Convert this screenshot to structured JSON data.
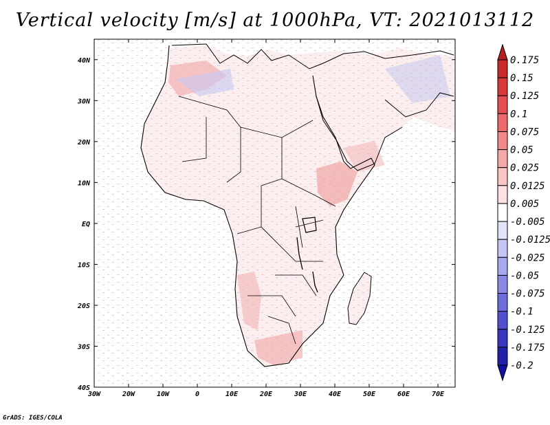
{
  "title": "Vertical velocity [m/s] at 1000hPa, VT: 2021013112",
  "footer": "GrADS: IGES/COLA",
  "map": {
    "lon_range": [
      -30,
      75
    ],
    "lat_range": [
      -40,
      45
    ],
    "lat_ticks": [
      {
        "value": 40,
        "label": "40N"
      },
      {
        "value": 30,
        "label": "30N"
      },
      {
        "value": 20,
        "label": "20N"
      },
      {
        "value": 10,
        "label": "10N"
      },
      {
        "value": 0,
        "label": "EQ"
      },
      {
        "value": -10,
        "label": "10S"
      },
      {
        "value": -20,
        "label": "20S"
      },
      {
        "value": -30,
        "label": "30S"
      },
      {
        "value": -40,
        "label": "40S"
      }
    ],
    "lon_ticks": [
      {
        "value": -30,
        "label": "30W"
      },
      {
        "value": -20,
        "label": "20W"
      },
      {
        "value": -10,
        "label": "10W"
      },
      {
        "value": 0,
        "label": "0"
      },
      {
        "value": 10,
        "label": "10E"
      },
      {
        "value": 20,
        "label": "20E"
      },
      {
        "value": 30,
        "label": "30E"
      },
      {
        "value": 40,
        "label": "40E"
      },
      {
        "value": 50,
        "label": "50E"
      },
      {
        "value": 60,
        "label": "60E"
      },
      {
        "value": 70,
        "label": "70E"
      }
    ]
  },
  "colorbar": {
    "levels": [
      {
        "label": "0.175",
        "color": "#b22222"
      },
      {
        "label": "0.15",
        "color": "#c62a2a"
      },
      {
        "label": "0.125",
        "color": "#d83a3a"
      },
      {
        "label": "0.1",
        "color": "#e45050"
      },
      {
        "label": "0.075",
        "color": "#ec6a6a"
      },
      {
        "label": "0.05",
        "color": "#f28888"
      },
      {
        "label": "0.025",
        "color": "#f6a8a8"
      },
      {
        "label": "0.0125",
        "color": "#fac6c6"
      },
      {
        "label": "0.005",
        "color": "#fde2e2"
      },
      {
        "label": "-0.005",
        "color": "#ffffff"
      },
      {
        "label": "-0.0125",
        "color": "#e2e2fb"
      },
      {
        "label": "-0.025",
        "color": "#c6c6f6"
      },
      {
        "label": "-0.05",
        "color": "#a8a8ef"
      },
      {
        "label": "-0.075",
        "color": "#8a8ae6"
      },
      {
        "label": "-0.1",
        "color": "#6c6cdc"
      },
      {
        "label": "-0.125",
        "color": "#5050d0"
      },
      {
        "label": "-0.175",
        "color": "#3636c0"
      },
      {
        "label": "-0.2",
        "color": "#2020a8"
      }
    ],
    "under_color": "#1010a0"
  }
}
